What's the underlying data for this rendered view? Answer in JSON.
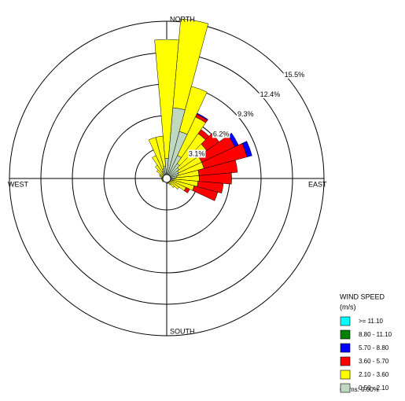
{
  "chart_data": {
    "type": "windrose",
    "compass_labels": [
      "NORTH",
      "EAST",
      "SOUTH",
      "WEST"
    ],
    "x": [
      0,
      10,
      20,
      30,
      40,
      50,
      60,
      70,
      80,
      90,
      100,
      110,
      120,
      130,
      140,
      150,
      160,
      170,
      180,
      190,
      200,
      210,
      220,
      230,
      240,
      250,
      260,
      270,
      280,
      290,
      300,
      310,
      320,
      330,
      340,
      350
    ],
    "rlim": [
      0,
      15.5
    ],
    "rticks": [
      {
        "value": 3.1,
        "label": "3.1%"
      },
      {
        "value": 6.2,
        "label": "6.2%"
      },
      {
        "value": 9.3,
        "label": "9.3%"
      },
      {
        "value": 12.4,
        "label": "12.4%"
      },
      {
        "value": 15.5,
        "label": "15.5%"
      }
    ],
    "legend_title": "WIND SPEED",
    "legend_units": "(m/s)",
    "calms_label": "Calms: 0.00%",
    "series": [
      {
        "name": ">= 11.10",
        "color": "#00ffff",
        "values": [
          0,
          0,
          0,
          0,
          0,
          0,
          0,
          0,
          0,
          0,
          0,
          0,
          0,
          0,
          0,
          0,
          0,
          0,
          0,
          0,
          0,
          0,
          0,
          0,
          0,
          0,
          0,
          0,
          0,
          0,
          0,
          0,
          0,
          0,
          0,
          0
        ]
      },
      {
        "name": "8.80 - 11.10",
        "color": "#008000",
        "values": [
          0,
          0,
          0,
          0,
          0,
          0,
          0,
          0,
          0,
          0,
          0,
          0,
          0,
          0,
          0,
          0,
          0,
          0,
          0,
          0,
          0,
          0,
          0,
          0,
          0,
          0,
          0,
          0,
          0,
          0,
          0,
          0,
          0,
          0,
          0,
          0
        ]
      },
      {
        "name": "5.70 - 8.80",
        "color": "#0000ff",
        "values": [
          0,
          0,
          0,
          0.1,
          0,
          0,
          0.4,
          0.5,
          0,
          0,
          0,
          0,
          0,
          0,
          0,
          0,
          0,
          0,
          0,
          0,
          0,
          0,
          0,
          0,
          0,
          0,
          0,
          0,
          0,
          0,
          0,
          0,
          0,
          0,
          0,
          0
        ]
      },
      {
        "name": "3.60 - 5.70",
        "color": "#ff0000",
        "values": [
          0,
          0,
          0,
          0.3,
          0.5,
          1.5,
          3.6,
          4.4,
          3.8,
          3.2,
          2.5,
          2.4,
          0.4,
          0,
          0,
          0,
          0,
          0,
          0,
          0,
          0,
          0,
          0,
          0,
          0,
          0,
          0,
          0,
          0,
          0,
          0,
          0,
          0,
          0,
          0,
          0
        ]
      },
      {
        "name": "2.10 - 3.60",
        "color": "#ffff00",
        "values": [
          11.7,
          8.8,
          4.6,
          4.2,
          3.6,
          3.3,
          2.5,
          2.6,
          2.2,
          2.4,
          2.4,
          2.2,
          1.6,
          1.1,
          0.8,
          0.4,
          0.3,
          0.3,
          0.2,
          0.2,
          0.2,
          0.2,
          0.2,
          0.3,
          0.3,
          0.3,
          0.3,
          0.3,
          0.3,
          0.4,
          0.5,
          0.8,
          1.0,
          1.7,
          3.2,
          3.0
        ]
      },
      {
        "name": "0.50 - 2.10",
        "color": "#c0d8c0",
        "values": [
          2.0,
          7.0,
          4.8,
          2.5,
          1.8,
          1.5,
          1.3,
          1.2,
          1.0,
          0.8,
          0.7,
          0.6,
          0.5,
          0.4,
          0.3,
          0.3,
          0.2,
          0.2,
          0.2,
          0.2,
          0.2,
          0.2,
          0.2,
          0.2,
          0.2,
          0.2,
          0.2,
          0.2,
          0.2,
          0.3,
          0.3,
          0.4,
          0.6,
          0.8,
          1.0,
          1.2
        ]
      }
    ]
  }
}
